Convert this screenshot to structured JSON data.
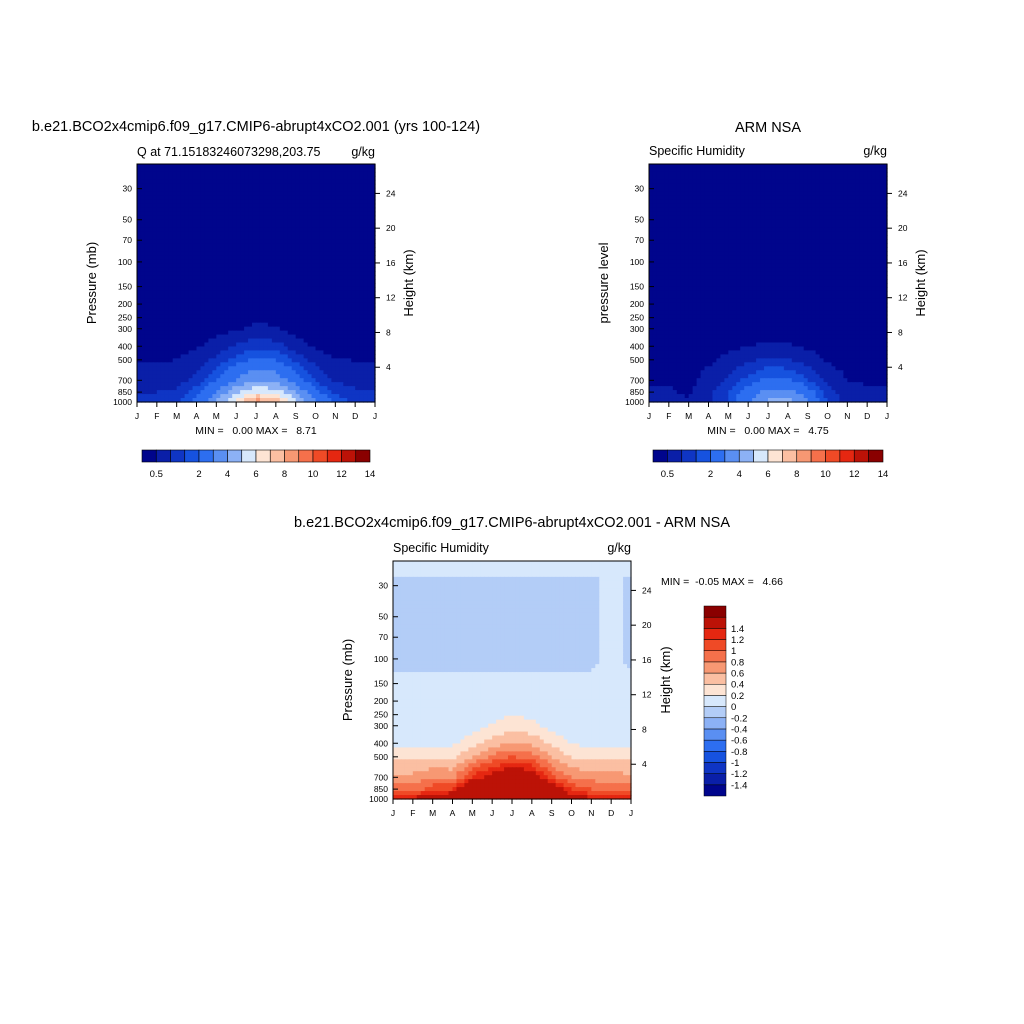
{
  "months": [
    "J",
    "F",
    "M",
    "A",
    "M",
    "J",
    "J",
    "A",
    "S",
    "O",
    "N",
    "D",
    "J"
  ],
  "pressure_ticks": [
    30,
    50,
    70,
    100,
    150,
    200,
    250,
    300,
    400,
    500,
    700,
    850,
    1000
  ],
  "pressure_tick_labels": [
    "30",
    "50",
    "70",
    "100",
    "150",
    "200",
    "250",
    "300",
    "400",
    "500",
    "700",
    "850",
    "1000"
  ],
  "height_ticks": [
    4,
    8,
    12,
    16,
    20,
    24
  ],
  "height_tick_labels": [
    "4",
    "8",
    "12",
    "16",
    "20",
    "24"
  ],
  "colors": {
    "abs": [
      "#00058c",
      "#0a1fa8",
      "#0f35c4",
      "#1652df",
      "#2d6ef0",
      "#5a8ff2",
      "#8cb1f5",
      "#d7e8fc",
      "#fde4d4",
      "#fbbfa2",
      "#f79873",
      "#f5704b",
      "#ef4a26",
      "#e52711",
      "#bc1207",
      "#8a0000"
    ],
    "diff": [
      "#00058c",
      "#0a1fa8",
      "#0f35c4",
      "#1652df",
      "#2d6ef0",
      "#5a8ff2",
      "#8cb1f5",
      "#b3cdf7",
      "#d7e8fc",
      "#fde4d4",
      "#fbbfa2",
      "#f79873",
      "#f5704b",
      "#ef4a26",
      "#e52711",
      "#bc1207",
      "#8a0000"
    ]
  },
  "chart_data": [
    {
      "type": "contour",
      "title": "b.e21.BCO2x4cmip6.f09_g17.CMIP6-abrupt4xCO2.001 (yrs 100-124)",
      "left_string": "Q at 71.15183246073298,203.75",
      "right_string": "g/kg",
      "ylabel": "Pressure (mb)",
      "ylabel_right": "Height (km)",
      "min_max_text": "MIN =   0.00 MAX =   8.71",
      "min": 0.0,
      "max": 8.71,
      "colorbar": {
        "orientation": "horizontal",
        "levels": [
          0.5,
          1,
          1.5,
          2,
          3,
          4,
          5,
          6,
          7,
          8,
          9,
          10,
          11,
          12,
          13,
          14,
          15
        ],
        "tick_labels": [
          "0.5",
          "2",
          "4",
          "6",
          "8",
          "10",
          "12",
          "14"
        ]
      },
      "profile": {
        "pressure": [
          1000,
          850,
          700,
          500,
          400,
          300,
          200
        ],
        "month": [
          0,
          1,
          2,
          3,
          4,
          5,
          6,
          7,
          8,
          9,
          10,
          11,
          12
        ],
        "values": [
          [
            1.3,
            1.3,
            1.5,
            2.3,
            4.0,
            6.5,
            8.71,
            7.8,
            5.4,
            3.0,
            1.8,
            1.4,
            1.3
          ],
          [
            1.0,
            1.0,
            1.1,
            1.8,
            3.0,
            4.8,
            6.0,
            5.5,
            3.9,
            2.2,
            1.4,
            1.1,
            1.0
          ],
          [
            0.7,
            0.7,
            0.8,
            1.2,
            2.0,
            3.1,
            4.0,
            3.6,
            2.5,
            1.4,
            0.9,
            0.75,
            0.7
          ],
          [
            0.45,
            0.45,
            0.5,
            0.75,
            1.1,
            1.7,
            2.2,
            2.0,
            1.4,
            0.8,
            0.55,
            0.47,
            0.45
          ],
          [
            0.2,
            0.2,
            0.22,
            0.45,
            0.7,
            1.05,
            1.35,
            1.2,
            0.75,
            0.42,
            0.25,
            0.2,
            0.2
          ],
          [
            0.06,
            0.06,
            0.07,
            0.15,
            0.3,
            0.45,
            0.6,
            0.55,
            0.3,
            0.15,
            0.08,
            0.06,
            0.06
          ],
          [
            0.01,
            0.01,
            0.01,
            0.02,
            0.05,
            0.1,
            0.15,
            0.13,
            0.06,
            0.02,
            0.01,
            0.01,
            0.01
          ]
        ]
      }
    },
    {
      "type": "contour",
      "title": "ARM NSA",
      "left_string": "Specific Humidity",
      "right_string": "g/kg",
      "ylabel": "pressure level",
      "ylabel_right": "Height (km)",
      "min_max_text": "MIN =   0.00 MAX =   4.75",
      "min": 0.0,
      "max": 4.75,
      "colorbar": {
        "orientation": "horizontal",
        "levels": [
          0.5,
          1,
          1.5,
          2,
          3,
          4,
          5,
          6,
          7,
          8,
          9,
          10,
          11,
          12,
          13,
          14,
          15
        ],
        "tick_labels": [
          "0.5",
          "2",
          "4",
          "6",
          "8",
          "10",
          "12",
          "14"
        ]
      },
      "profile": {
        "pressure": [
          1000,
          850,
          700,
          500,
          400,
          300,
          200
        ],
        "month": [
          0,
          1,
          2,
          3,
          4,
          5,
          6,
          7,
          8,
          9,
          10,
          11,
          12
        ],
        "values": [
          [
            0.6,
            0.6,
            0.55,
            0.9,
            1.5,
            2.7,
            4.2,
            4.75,
            3.0,
            1.4,
            0.8,
            0.6,
            0.6
          ],
          [
            0.55,
            0.55,
            0.45,
            0.85,
            1.5,
            2.4,
            3.3,
            3.4,
            2.4,
            1.2,
            0.7,
            0.55,
            0.55
          ],
          [
            0.45,
            0.45,
            0.35,
            0.7,
            1.1,
            1.7,
            2.2,
            2.1,
            1.5,
            0.85,
            0.5,
            0.45,
            0.45
          ],
          [
            0.25,
            0.25,
            0.25,
            0.4,
            0.65,
            0.9,
            1.1,
            1.05,
            0.8,
            0.45,
            0.3,
            0.25,
            0.25
          ],
          [
            0.12,
            0.12,
            0.12,
            0.2,
            0.35,
            0.5,
            0.6,
            0.55,
            0.42,
            0.22,
            0.14,
            0.12,
            0.12
          ],
          [
            0.04,
            0.04,
            0.04,
            0.08,
            0.14,
            0.2,
            0.25,
            0.22,
            0.16,
            0.08,
            0.05,
            0.04,
            0.04
          ],
          [
            0.01,
            0.01,
            0.01,
            0.02,
            0.03,
            0.05,
            0.06,
            0.05,
            0.04,
            0.02,
            0.01,
            0.01,
            0.01
          ]
        ]
      }
    },
    {
      "type": "contour",
      "title": "b.e21.BCO2x4cmip6.f09_g17.CMIP6-abrupt4xCO2.001 - ARM NSA",
      "left_string": "Specific Humidity",
      "right_string": "g/kg",
      "ylabel": "Pressure (mb)",
      "ylabel_right": "Height (km)",
      "min_max_text": "MIN =  -0.05 MAX =   4.66",
      "min": -0.05,
      "max": 4.66,
      "colorbar": {
        "orientation": "vertical",
        "levels": [
          -1.4,
          -1.2,
          -1,
          -0.8,
          -0.6,
          -0.4,
          -0.2,
          0,
          0.2,
          0.4,
          0.6,
          0.8,
          1,
          1.2,
          1.4
        ],
        "tick_labels": [
          "-1.4",
          "-1.2",
          "-1",
          "-0.8",
          "-0.6",
          "-0.4",
          "-0.2",
          "0",
          "0.2",
          "0.4",
          "0.6",
          "0.8",
          "1",
          "1.2",
          "1.4"
        ]
      },
      "profile": {
        "pressure": [
          1000,
          850,
          700,
          500,
          400,
          300,
          200,
          150,
          100
        ],
        "month": [
          0,
          1,
          2,
          3,
          4,
          5,
          6,
          7,
          8,
          9,
          10,
          11,
          12
        ],
        "values": [
          [
            1.5,
            1.5,
            1.6,
            1.8,
            2.5,
            3.8,
            4.66,
            3.6,
            2.4,
            1.6,
            1.45,
            1.5,
            1.5
          ],
          [
            0.9,
            0.9,
            1.1,
            1.2,
            1.9,
            2.6,
            2.8,
            2.5,
            1.7,
            1.15,
            1.0,
            0.95,
            0.9
          ],
          [
            0.65,
            0.65,
            0.8,
            0.75,
            1.25,
            1.55,
            1.8,
            1.6,
            1.05,
            0.78,
            0.72,
            0.68,
            0.65
          ],
          [
            0.35,
            0.35,
            0.35,
            0.35,
            0.6,
            0.85,
            1.0,
            0.9,
            0.6,
            0.38,
            0.35,
            0.36,
            0.35
          ],
          [
            0.15,
            0.15,
            0.15,
            0.15,
            0.32,
            0.5,
            0.62,
            0.55,
            0.35,
            0.18,
            0.15,
            0.15,
            0.15
          ],
          [
            0.05,
            0.05,
            0.05,
            0.06,
            0.12,
            0.22,
            0.3,
            0.25,
            0.14,
            0.06,
            0.05,
            0.05,
            0.05
          ],
          [
            0.02,
            0.02,
            0.02,
            0.02,
            0.03,
            0.05,
            0.07,
            0.06,
            0.04,
            0.02,
            0.02,
            0.02,
            0.02
          ],
          [
            0.01,
            0.01,
            0.01,
            0.01,
            0.01,
            0.01,
            0.01,
            0.01,
            0.01,
            0.01,
            0.01,
            0.01,
            0.01
          ],
          [
            -0.01,
            -0.01,
            -0.01,
            -0.01,
            -0.01,
            -0.01,
            -0.01,
            -0.01,
            -0.01,
            -0.01,
            -0.01,
            0.01,
            -0.01
          ]
        ]
      }
    }
  ]
}
